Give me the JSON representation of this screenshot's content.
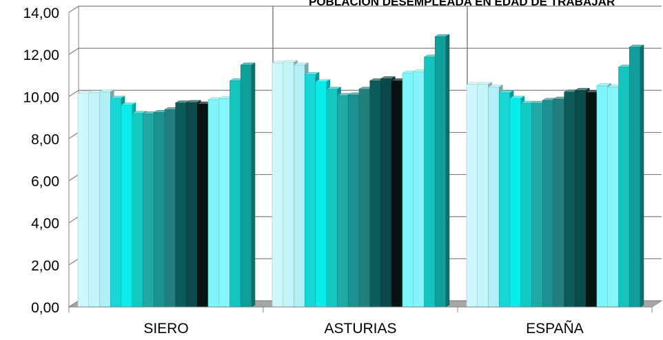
{
  "chart_data": {
    "type": "bar",
    "style": "3d-clustered",
    "title": "POBLACIÓN DESEMPLEADA EN EDAD DE TRABAJAR",
    "xlabel": "",
    "ylabel": "",
    "ylim": [
      0,
      14
    ],
    "yticks": [
      "0,00",
      "2,00",
      "4,00",
      "6,00",
      "8,00",
      "10,00",
      "12,00",
      "14,00"
    ],
    "grid": true,
    "legend": "none",
    "categories": [
      "SIERO",
      "ASTURIAS",
      "ESPAÑA"
    ],
    "bar_colors": [
      "#ccf8fc",
      "#c2f6fb",
      "#b0f0f6",
      "#16d6d6",
      "#09eeec",
      "#14c8c2",
      "#21a9a5",
      "#1b928f",
      "#237f7d",
      "#0b5b5c",
      "#0a4a4c",
      "#081414",
      "#7ef6f9",
      "#86f5f9",
      "#14c4bf",
      "#119e9b"
    ],
    "groups": [
      {
        "category": "SIERO",
        "values": [
          10.15,
          10.18,
          10.22,
          9.92,
          9.6,
          9.2,
          9.18,
          9.25,
          9.38,
          9.7,
          9.72,
          9.65,
          9.85,
          9.9,
          10.75,
          11.5
        ]
      },
      {
        "category": "ASTURIAS",
        "values": [
          11.6,
          11.62,
          11.5,
          11.05,
          10.7,
          10.35,
          10.05,
          10.08,
          10.35,
          10.75,
          10.85,
          10.75,
          11.12,
          11.18,
          11.88,
          12.85
        ]
      },
      {
        "category": "ESPAÑA",
        "values": [
          10.58,
          10.58,
          10.45,
          10.18,
          9.92,
          9.68,
          9.68,
          9.82,
          9.88,
          10.22,
          10.3,
          10.2,
          10.52,
          10.45,
          11.4,
          12.35
        ]
      }
    ]
  }
}
